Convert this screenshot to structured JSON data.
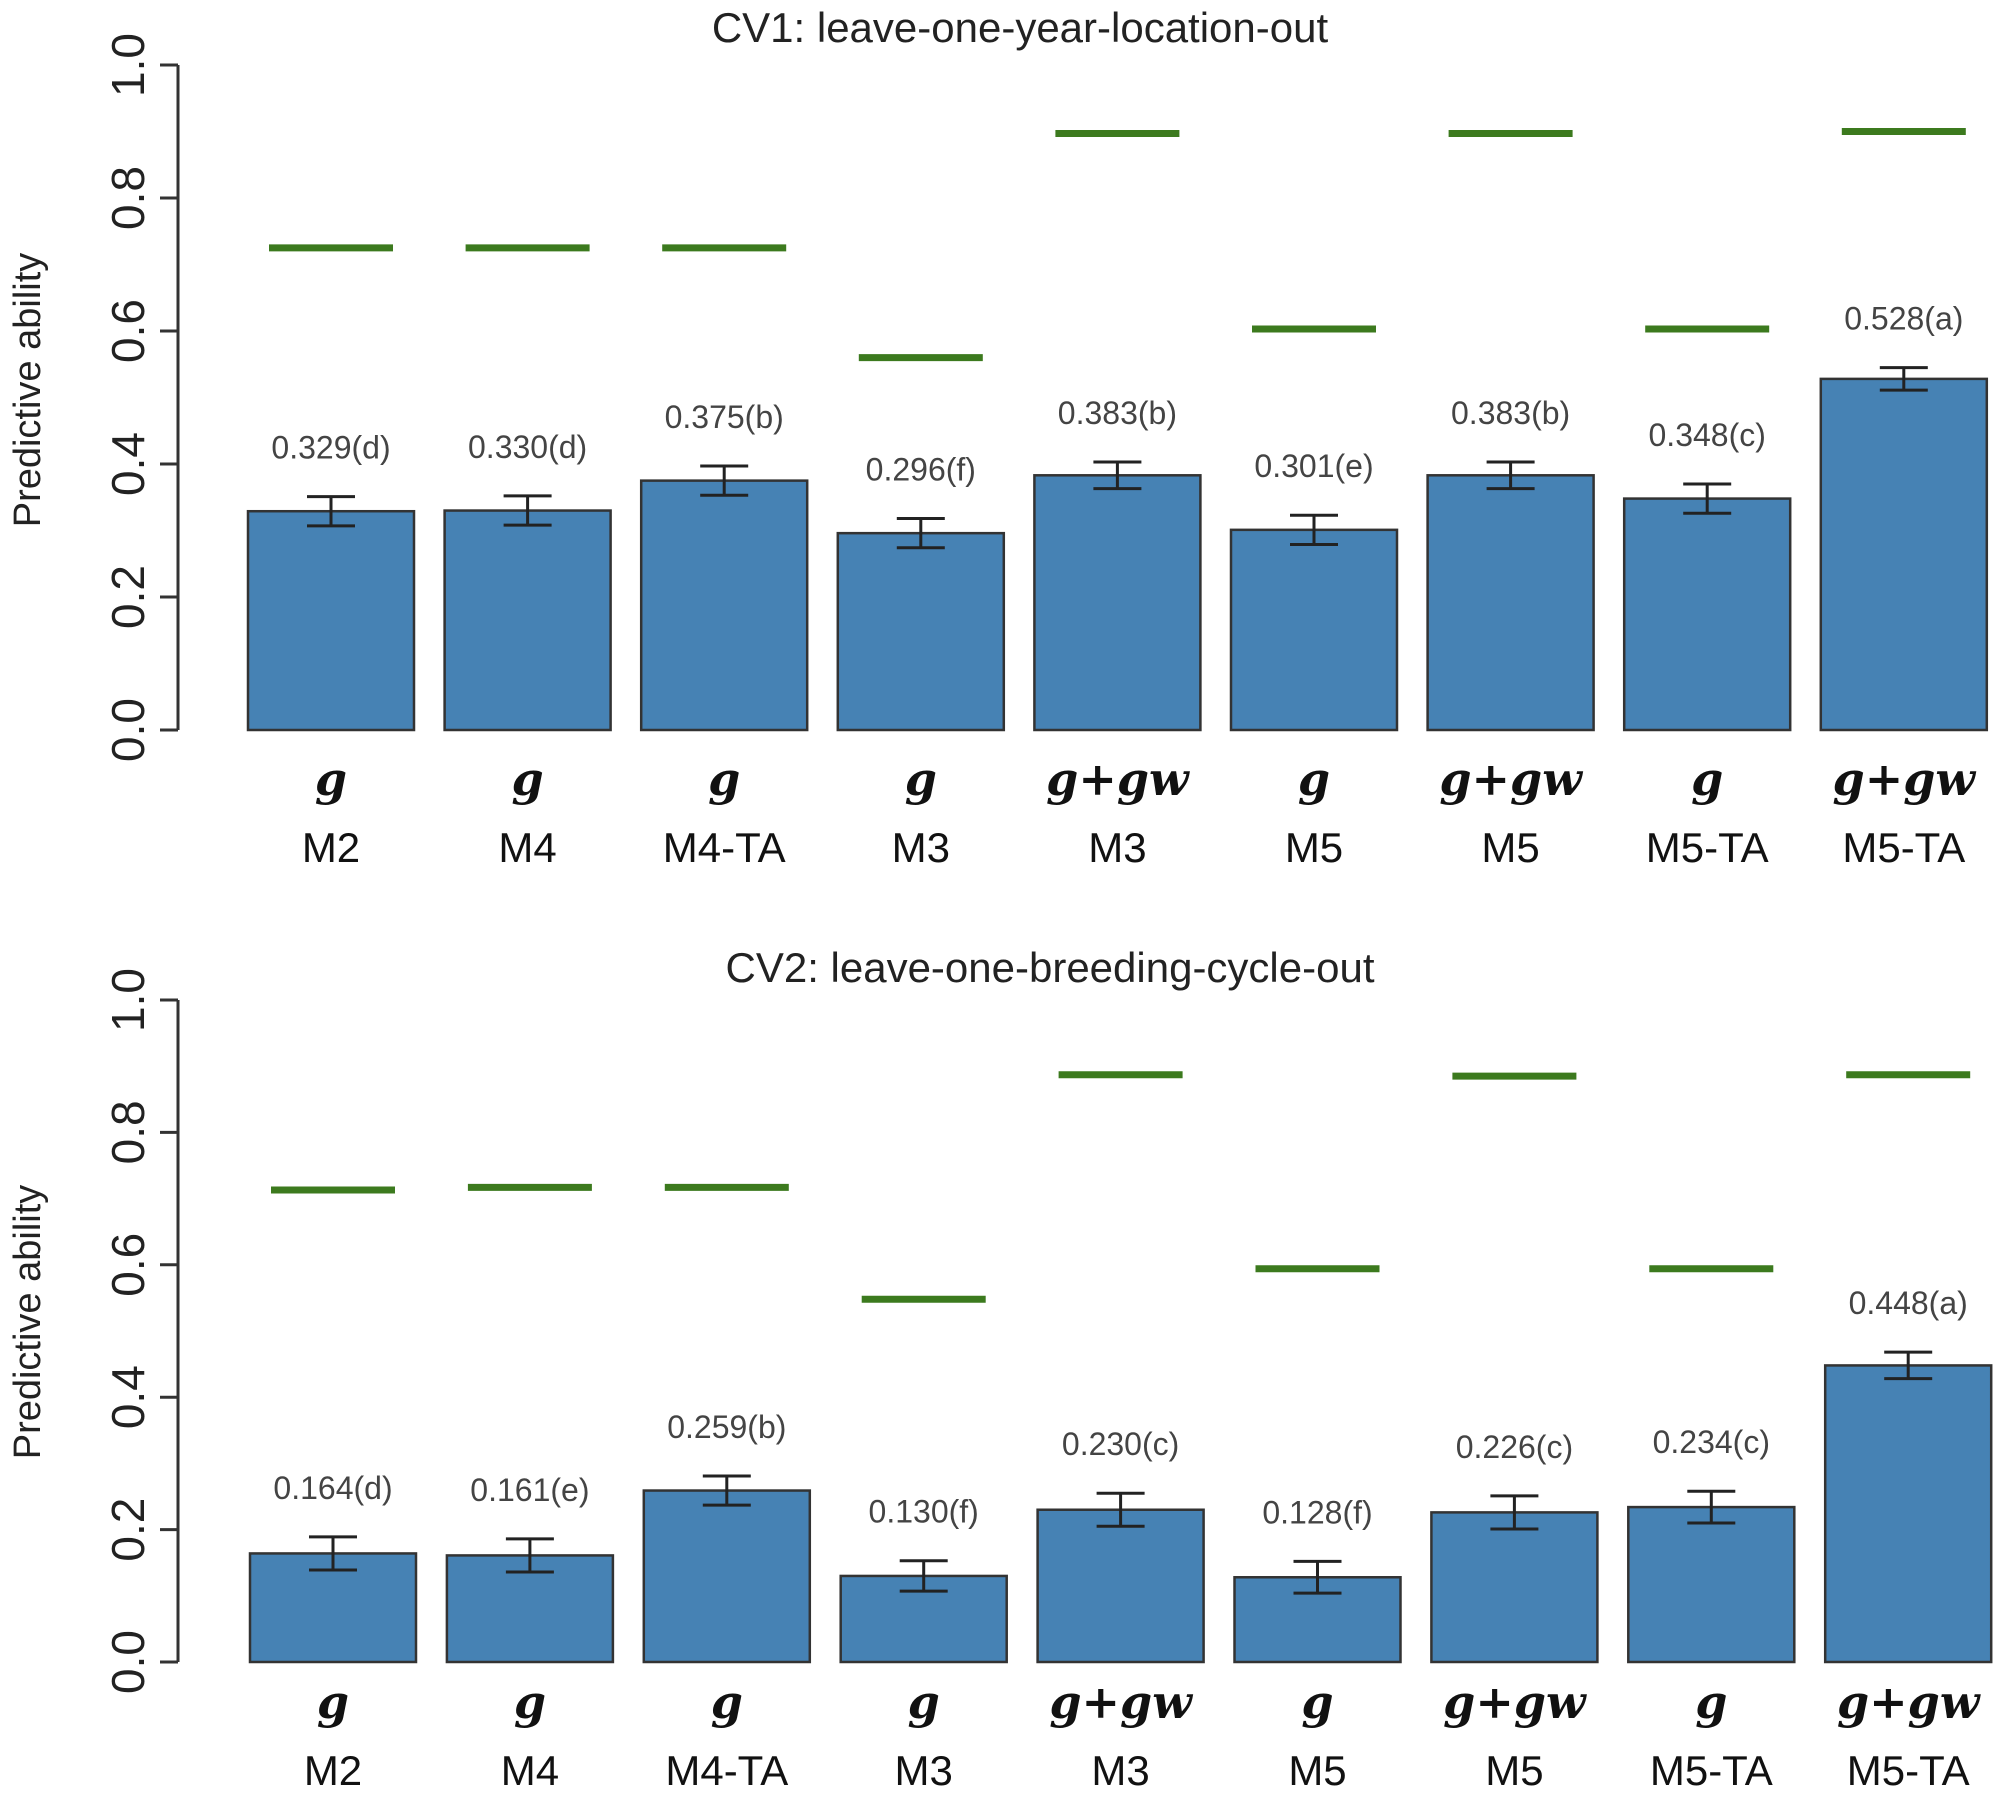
{
  "chart_data": [
    {
      "type": "bar",
      "title": "CV1: leave-one-year-location-out",
      "ylabel": "Predictive ability",
      "xlabel": "",
      "ylim": [
        0,
        1.0
      ],
      "yticks": [
        "0.0",
        "0.2",
        "0.4",
        "0.6",
        "0.8",
        "1.0"
      ],
      "categories": [
        "M2",
        "M4",
        "M4-TA",
        "M3",
        "M3",
        "M5",
        "M5",
        "M5-TA",
        "M5-TA"
      ],
      "terms": [
        "g",
        "g",
        "g",
        "g",
        "g+gw",
        "g",
        "g+gw",
        "g",
        "g+gw"
      ],
      "values": [
        0.329,
        0.33,
        0.375,
        0.296,
        0.383,
        0.301,
        0.383,
        0.348,
        0.528
      ],
      "error": [
        0.022,
        0.022,
        0.022,
        0.022,
        0.02,
        0.022,
        0.02,
        0.022,
        0.017
      ],
      "data_labels": [
        "0.329(d)",
        "0.330(d)",
        "0.375(b)",
        "0.296(f)",
        "0.383(b)",
        "0.301(e)",
        "0.383(b)",
        "0.348(c)",
        "0.528(a)"
      ],
      "reference_lines": [
        0.725,
        0.725,
        0.725,
        0.56,
        0.897,
        0.603,
        0.897,
        0.603,
        0.9
      ],
      "colors": {
        "bar": "#4682b4",
        "bar_edge": "#333333",
        "reference": "#3c7a1e",
        "error": "#222222"
      }
    },
    {
      "type": "bar",
      "title": "CV2: leave-one-breeding-cycle-out",
      "ylabel": "Predictive ability",
      "xlabel": "",
      "ylim": [
        0,
        1.0
      ],
      "yticks": [
        "0.0",
        "0.2",
        "0.4",
        "0.6",
        "0.8",
        "1.0"
      ],
      "categories": [
        "M2",
        "M4",
        "M4-TA",
        "M3",
        "M3",
        "M5",
        "M5",
        "M5-TA",
        "M5-TA"
      ],
      "terms": [
        "g",
        "g",
        "g",
        "g",
        "g+gw",
        "g",
        "g+gw",
        "g",
        "g+gw"
      ],
      "values": [
        0.164,
        0.161,
        0.259,
        0.13,
        0.23,
        0.128,
        0.226,
        0.234,
        0.448
      ],
      "error": [
        0.025,
        0.025,
        0.022,
        0.023,
        0.025,
        0.024,
        0.025,
        0.024,
        0.02
      ],
      "data_labels": [
        "0.164(d)",
        "0.161(e)",
        "0.259(b)",
        "0.130(f)",
        "0.230(c)",
        "0.128(f)",
        "0.226(c)",
        "0.234(c)",
        "0.448(a)"
      ],
      "reference_lines": [
        0.713,
        0.717,
        0.717,
        0.548,
        0.887,
        0.594,
        0.885,
        0.594,
        0.887
      ],
      "colors": {
        "bar": "#4682b4",
        "bar_edge": "#333333",
        "reference": "#3c7a1e",
        "error": "#222222"
      }
    }
  ]
}
